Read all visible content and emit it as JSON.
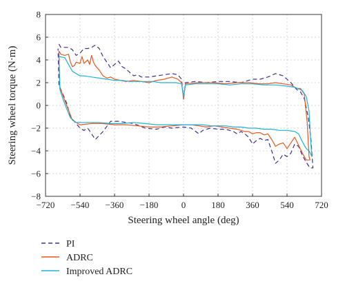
{
  "chart_data": {
    "type": "line",
    "title": "",
    "xlabel": "Steering wheel angle (deg)",
    "ylabel": "Steering wheel torque (N·m)",
    "xlim": [
      -720,
      720
    ],
    "ylim": [
      -8,
      8
    ],
    "xticks": [
      -720,
      -540,
      -360,
      -180,
      0,
      180,
      360,
      540,
      720
    ],
    "xtick_labels": [
      "−720",
      "−540",
      "−360",
      "−180",
      "0",
      "180",
      "360",
      "540",
      "720"
    ],
    "yticks": [
      -8,
      -6,
      -4,
      -2,
      0,
      2,
      4,
      6,
      8
    ],
    "ytick_labels": [
      "−8",
      "−6",
      "−4",
      "−2",
      "0",
      "2",
      "4",
      "6",
      "8"
    ],
    "grid": true,
    "legend_position": "below-left",
    "series": [
      {
        "name": "PI",
        "color": "#3a2e8f",
        "dash": "dashed",
        "points": [
          [
            -650,
            5.4
          ],
          [
            -640,
            5.1
          ],
          [
            -600,
            5.1
          ],
          [
            -580,
            4.9
          ],
          [
            -560,
            4.4
          ],
          [
            -540,
            4.6
          ],
          [
            -520,
            5.0
          ],
          [
            -500,
            5.0
          ],
          [
            -480,
            5.1
          ],
          [
            -460,
            5.3
          ],
          [
            -440,
            5.0
          ],
          [
            -420,
            4.3
          ],
          [
            -400,
            3.8
          ],
          [
            -380,
            3.3
          ],
          [
            -360,
            3.6
          ],
          [
            -340,
            3.9
          ],
          [
            -320,
            3.4
          ],
          [
            -300,
            3.2
          ],
          [
            -280,
            2.9
          ],
          [
            -260,
            2.6
          ],
          [
            -240,
            2.7
          ],
          [
            -220,
            2.5
          ],
          [
            -180,
            2.5
          ],
          [
            -140,
            2.6
          ],
          [
            -100,
            2.7
          ],
          [
            -60,
            2.8
          ],
          [
            -30,
            2.7
          ],
          [
            -10,
            2.3
          ],
          [
            0,
            0.5
          ],
          [
            10,
            2.0
          ],
          [
            60,
            2.1
          ],
          [
            120,
            2.0
          ],
          [
            180,
            2.1
          ],
          [
            240,
            2.1
          ],
          [
            300,
            2.0
          ],
          [
            360,
            2.3
          ],
          [
            400,
            2.3
          ],
          [
            440,
            2.5
          ],
          [
            480,
            2.8
          ],
          [
            520,
            2.6
          ],
          [
            560,
            2.0
          ],
          [
            590,
            1.4
          ],
          [
            610,
            1.2
          ],
          [
            630,
            0.6
          ],
          [
            650,
            -1.0
          ],
          [
            665,
            -3.0
          ],
          [
            675,
            -5.5
          ],
          [
            660,
            -5.5
          ],
          [
            640,
            -5.0
          ],
          [
            620,
            -4.4
          ],
          [
            600,
            -3.6
          ],
          [
            580,
            -3.4
          ],
          [
            560,
            -4.2
          ],
          [
            540,
            -4.5
          ],
          [
            520,
            -4.3
          ],
          [
            500,
            -4.8
          ],
          [
            480,
            -5.1
          ],
          [
            460,
            -4.0
          ],
          [
            440,
            -3.0
          ],
          [
            420,
            -3.1
          ],
          [
            400,
            -2.9
          ],
          [
            380,
            -3.1
          ],
          [
            360,
            -3.4
          ],
          [
            340,
            -2.8
          ],
          [
            320,
            -2.5
          ],
          [
            300,
            -2.3
          ],
          [
            280,
            -2.5
          ],
          [
            260,
            -2.3
          ],
          [
            220,
            -2.1
          ],
          [
            180,
            -2.1
          ],
          [
            140,
            -2.0
          ],
          [
            100,
            -2.2
          ],
          [
            80,
            -2.5
          ],
          [
            40,
            -2.0
          ],
          [
            0,
            -1.9
          ],
          [
            -60,
            -2.0
          ],
          [
            -100,
            -1.9
          ],
          [
            -140,
            -2.1
          ],
          [
            -200,
            -2.0
          ],
          [
            -260,
            -1.6
          ],
          [
            -300,
            -1.5
          ],
          [
            -340,
            -1.4
          ],
          [
            -380,
            -1.4
          ],
          [
            -420,
            -2.3
          ],
          [
            -460,
            -3.0
          ],
          [
            -480,
            -2.5
          ],
          [
            -500,
            -2.0
          ],
          [
            -520,
            -2.2
          ],
          [
            -540,
            -2.0
          ],
          [
            -560,
            -1.6
          ],
          [
            -590,
            -1.0
          ],
          [
            -610,
            0.2
          ],
          [
            -630,
            1.0
          ],
          [
            -650,
            1.8
          ],
          [
            -655,
            5.0
          ]
        ]
      },
      {
        "name": "ADRC",
        "color": "#e8571e",
        "dash": "solid",
        "points": [
          [
            -650,
            4.8
          ],
          [
            -640,
            4.5
          ],
          [
            -620,
            4.4
          ],
          [
            -600,
            4.5
          ],
          [
            -590,
            3.8
          ],
          [
            -580,
            3.4
          ],
          [
            -570,
            3.5
          ],
          [
            -560,
            3.8
          ],
          [
            -540,
            3.7
          ],
          [
            -530,
            4.3
          ],
          [
            -520,
            3.7
          ],
          [
            -500,
            4.0
          ],
          [
            -490,
            3.6
          ],
          [
            -480,
            4.4
          ],
          [
            -470,
            3.8
          ],
          [
            -460,
            3.5
          ],
          [
            -440,
            3.1
          ],
          [
            -420,
            2.6
          ],
          [
            -400,
            2.4
          ],
          [
            -380,
            2.5
          ],
          [
            -360,
            2.3
          ],
          [
            -330,
            2.2
          ],
          [
            -300,
            2.1
          ],
          [
            -260,
            2.2
          ],
          [
            -220,
            2.1
          ],
          [
            -180,
            2.0
          ],
          [
            -140,
            2.2
          ],
          [
            -100,
            2.3
          ],
          [
            -60,
            2.5
          ],
          [
            -30,
            2.3
          ],
          [
            -10,
            2.0
          ],
          [
            0,
            0.6
          ],
          [
            10,
            1.9
          ],
          [
            80,
            2.0
          ],
          [
            160,
            2.0
          ],
          [
            220,
            1.9
          ],
          [
            280,
            2.0
          ],
          [
            340,
            2.0
          ],
          [
            400,
            1.9
          ],
          [
            440,
            1.9
          ],
          [
            480,
            2.0
          ],
          [
            520,
            1.9
          ],
          [
            560,
            1.8
          ],
          [
            590,
            1.5
          ],
          [
            610,
            1.5
          ],
          [
            630,
            1.0
          ],
          [
            645,
            -1.5
          ],
          [
            655,
            -4.5
          ],
          [
            660,
            -4.8
          ],
          [
            640,
            -4.8
          ],
          [
            620,
            -4.2
          ],
          [
            600,
            -3.5
          ],
          [
            580,
            -2.8
          ],
          [
            560,
            -3.3
          ],
          [
            540,
            -3.8
          ],
          [
            520,
            -3.3
          ],
          [
            500,
            -3.4
          ],
          [
            480,
            -3.6
          ],
          [
            460,
            -3.0
          ],
          [
            440,
            -2.5
          ],
          [
            420,
            -2.6
          ],
          [
            400,
            -2.4
          ],
          [
            380,
            -2.4
          ],
          [
            360,
            -2.5
          ],
          [
            340,
            -2.3
          ],
          [
            320,
            -2.3
          ],
          [
            280,
            -2.1
          ],
          [
            240,
            -2.0
          ],
          [
            200,
            -1.9
          ],
          [
            160,
            -1.8
          ],
          [
            120,
            -1.9
          ],
          [
            80,
            -1.8
          ],
          [
            40,
            -1.7
          ],
          [
            0,
            -1.7
          ],
          [
            -60,
            -1.8
          ],
          [
            -120,
            -1.9
          ],
          [
            -180,
            -1.9
          ],
          [
            -240,
            -1.8
          ],
          [
            -300,
            -1.7
          ],
          [
            -360,
            -1.7
          ],
          [
            -420,
            -1.6
          ],
          [
            -480,
            -1.6
          ],
          [
            -540,
            -1.7
          ],
          [
            -580,
            -1.3
          ],
          [
            -610,
            0.0
          ],
          [
            -630,
            0.9
          ],
          [
            -645,
            1.6
          ],
          [
            -650,
            4.8
          ]
        ]
      },
      {
        "name": "Improved ADRC",
        "color": "#1eb1d8",
        "dash": "solid",
        "points": [
          [
            -650,
            4.3
          ],
          [
            -620,
            4.2
          ],
          [
            -600,
            3.6
          ],
          [
            -580,
            3.0
          ],
          [
            -560,
            2.8
          ],
          [
            -540,
            2.6
          ],
          [
            -520,
            2.6
          ],
          [
            -480,
            2.5
          ],
          [
            -440,
            2.4
          ],
          [
            -400,
            2.3
          ],
          [
            -360,
            2.2
          ],
          [
            -320,
            2.2
          ],
          [
            -280,
            2.1
          ],
          [
            -240,
            2.1
          ],
          [
            -200,
            2.1
          ],
          [
            -160,
            2.1
          ],
          [
            -120,
            2.0
          ],
          [
            -80,
            2.0
          ],
          [
            -40,
            2.0
          ],
          [
            -10,
            1.9
          ],
          [
            0,
            0.8
          ],
          [
            10,
            1.8
          ],
          [
            60,
            1.9
          ],
          [
            120,
            1.9
          ],
          [
            180,
            1.9
          ],
          [
            240,
            1.8
          ],
          [
            300,
            1.9
          ],
          [
            360,
            1.9
          ],
          [
            420,
            1.8
          ],
          [
            480,
            1.8
          ],
          [
            540,
            1.7
          ],
          [
            580,
            1.6
          ],
          [
            620,
            1.3
          ],
          [
            640,
            0.8
          ],
          [
            655,
            -0.5
          ],
          [
            665,
            -3.5
          ],
          [
            670,
            -4.5
          ],
          [
            655,
            -4.0
          ],
          [
            640,
            -3.8
          ],
          [
            620,
            -3.2
          ],
          [
            600,
            -2.5
          ],
          [
            580,
            -2.3
          ],
          [
            540,
            -2.2
          ],
          [
            500,
            -2.2
          ],
          [
            460,
            -2.1
          ],
          [
            420,
            -2.1
          ],
          [
            380,
            -2.0
          ],
          [
            340,
            -2.0
          ],
          [
            300,
            -1.9
          ],
          [
            260,
            -1.9
          ],
          [
            220,
            -1.8
          ],
          [
            180,
            -1.8
          ],
          [
            140,
            -1.8
          ],
          [
            100,
            -1.7
          ],
          [
            60,
            -1.7
          ],
          [
            20,
            -1.7
          ],
          [
            -20,
            -1.7
          ],
          [
            -80,
            -1.7
          ],
          [
            -140,
            -1.7
          ],
          [
            -200,
            -1.6
          ],
          [
            -260,
            -1.5
          ],
          [
            -320,
            -1.6
          ],
          [
            -380,
            -1.6
          ],
          [
            -440,
            -1.5
          ],
          [
            -500,
            -1.5
          ],
          [
            -560,
            -1.5
          ],
          [
            -590,
            -1.1
          ],
          [
            -610,
            -0.3
          ],
          [
            -630,
            0.6
          ],
          [
            -645,
            1.4
          ],
          [
            -650,
            4.3
          ]
        ]
      }
    ]
  }
}
